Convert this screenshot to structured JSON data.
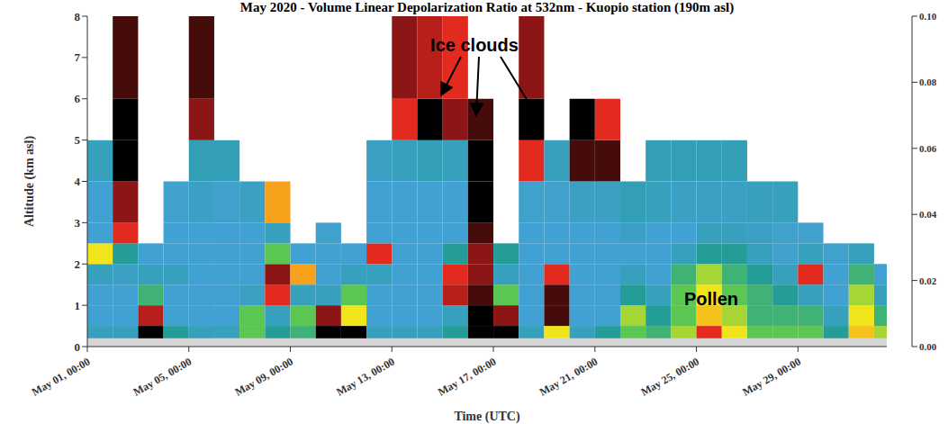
{
  "chart_data": {
    "type": "heatmap",
    "title": "May 2020 - Volume Linear Depolarization Ratio at 532nm - Kuopio station (190m asl)",
    "x_label": "Time (UTC)",
    "y_label": "Altitude (km asl)",
    "xlim": [
      0,
      31.5
    ],
    "xticks": [
      {
        "value": 0,
        "label": "May 01, 00:00"
      },
      {
        "value": 4,
        "label": "May 05, 00:00"
      },
      {
        "value": 8,
        "label": "May 09, 00:00"
      },
      {
        "value": 12,
        "label": "May 13, 00:00"
      },
      {
        "value": 16,
        "label": "May 17, 00:00"
      },
      {
        "value": 20,
        "label": "May 21, 00:00"
      },
      {
        "value": 24,
        "label": "May 25, 00:00"
      },
      {
        "value": 28,
        "label": "May 29, 00:00"
      }
    ],
    "ylim": [
      0,
      8
    ],
    "yticks": [
      0,
      1,
      2,
      3,
      4,
      5,
      6,
      7,
      8
    ],
    "x_edges": [
      0,
      1,
      2,
      3,
      4,
      5,
      6,
      7,
      8,
      9,
      10,
      11,
      12,
      13,
      14,
      15,
      16,
      17,
      18,
      19,
      20,
      21,
      22,
      23,
      24,
      25,
      26,
      27,
      28,
      29,
      30,
      31,
      31.5
    ],
    "y_edges": [
      0.2,
      0.5,
      1,
      1.5,
      2,
      2.5,
      3,
      4,
      5,
      6,
      8
    ],
    "cells": [
      [
        0.015,
        0.012,
        0.012,
        0.015,
        0.04,
        0.012,
        0.012,
        0.015,
        null,
        null
      ],
      [
        0.015,
        0.012,
        0.012,
        0.014,
        0.02,
        0.06,
        0.08,
        0.1,
        0.1,
        0.09
      ],
      [
        0.1,
        0.07,
        0.025,
        0.015,
        0.012,
        null,
        null,
        null,
        null,
        null
      ],
      [
        0.02,
        0.012,
        0.012,
        0.015,
        0.012,
        0.012,
        0.013,
        null,
        null,
        null
      ],
      [
        0.015,
        0.012,
        0.012,
        0.012,
        0.012,
        0.012,
        0.014,
        0.016,
        0.08,
        0.09
      ],
      [
        0.015,
        0.012,
        0.012,
        0.012,
        0.012,
        0.012,
        0.013,
        0.016,
        null,
        null
      ],
      [
        0.03,
        0.03,
        0.014,
        0.012,
        0.012,
        0.012,
        0.014,
        null,
        null,
        null
      ],
      [
        0.02,
        0.015,
        0.06,
        0.08,
        0.03,
        0.015,
        0.05,
        null,
        null,
        null
      ],
      [
        0.025,
        0.03,
        0.015,
        0.05,
        0.012,
        null,
        null,
        null,
        null,
        null
      ],
      [
        0.1,
        0.08,
        0.015,
        0.012,
        0.012,
        0.013,
        null,
        null,
        null,
        null
      ],
      [
        0.1,
        0.04,
        0.03,
        0.015,
        0.012,
        null,
        null,
        null,
        null,
        null
      ],
      [
        0.015,
        0.012,
        0.012,
        0.015,
        0.06,
        0.012,
        0.012,
        0.014,
        null,
        null
      ],
      [
        0.015,
        0.012,
        0.012,
        0.012,
        0.012,
        0.012,
        0.012,
        0.015,
        0.06,
        0.08
      ],
      [
        0.015,
        0.012,
        0.012,
        0.012,
        0.012,
        0.012,
        0.012,
        0.016,
        0.1,
        0.07
      ],
      [
        0.02,
        0.015,
        0.07,
        0.06,
        0.02,
        0.012,
        0.012,
        0.015,
        0.08,
        0.06
      ],
      [
        0.1,
        0.1,
        0.09,
        0.08,
        0.08,
        0.09,
        0.1,
        0.1,
        0.09,
        null
      ],
      [
        0.1,
        0.08,
        0.03,
        0.015,
        0.02,
        null,
        null,
        null,
        null,
        null
      ],
      [
        0.015,
        0.012,
        0.012,
        0.012,
        0.012,
        0.012,
        0.013,
        0.06,
        0.1,
        0.08
      ],
      [
        0.04,
        0.09,
        0.09,
        0.06,
        0.012,
        0.012,
        0.013,
        0.015,
        null,
        null
      ],
      [
        0.015,
        0.012,
        0.012,
        0.012,
        0.012,
        0.012,
        0.014,
        0.09,
        0.1,
        null
      ],
      [
        0.02,
        0.012,
        0.012,
        0.012,
        0.012,
        0.012,
        0.014,
        0.09,
        0.06,
        null
      ],
      [
        0.03,
        0.035,
        0.02,
        0.015,
        0.012,
        0.014,
        0.016,
        null,
        null,
        null
      ],
      [
        0.025,
        0.02,
        0.015,
        0.012,
        0.012,
        0.012,
        0.015,
        0.016,
        null,
        null
      ],
      [
        0.035,
        0.03,
        0.03,
        0.025,
        0.015,
        0.012,
        0.014,
        0.016,
        null,
        null
      ],
      [
        0.06,
        0.045,
        0.04,
        0.035,
        0.02,
        0.015,
        0.014,
        0.016,
        null,
        null
      ],
      [
        0.04,
        0.035,
        0.03,
        0.025,
        0.02,
        0.015,
        0.014,
        0.016,
        null,
        null
      ],
      [
        0.03,
        0.025,
        0.025,
        0.02,
        0.015,
        0.014,
        0.015,
        null,
        null,
        null
      ],
      [
        0.03,
        0.025,
        0.02,
        0.015,
        0.013,
        0.013,
        0.015,
        null,
        null,
        null
      ],
      [
        0.03,
        0.025,
        0.015,
        0.06,
        0.015,
        0.013,
        null,
        null,
        null,
        null
      ],
      [
        0.02,
        0.015,
        0.012,
        0.012,
        0.013,
        null,
        null,
        null,
        null,
        null
      ],
      [
        0.045,
        0.04,
        0.035,
        0.025,
        0.015,
        null,
        null,
        null,
        null,
        null
      ],
      [
        0.035,
        0.025,
        0.015,
        0.012,
        null,
        null,
        null,
        null,
        null,
        null
      ]
    ],
    "colorbar_range": [
      0,
      0.1
    ],
    "colorbar_ticks": [
      {
        "value": 0,
        "label": "0.00"
      },
      {
        "value": 0.02,
        "label": "0.02"
      },
      {
        "value": 0.04,
        "label": "0.04"
      },
      {
        "value": 0.06,
        "label": "0.06"
      },
      {
        "value": 0.08,
        "label": "0.08"
      },
      {
        "value": 0.1,
        "label": "0.10"
      }
    ],
    "annotations": [
      {
        "text": "Ice clouds"
      },
      {
        "text": "Pollen"
      }
    ]
  }
}
